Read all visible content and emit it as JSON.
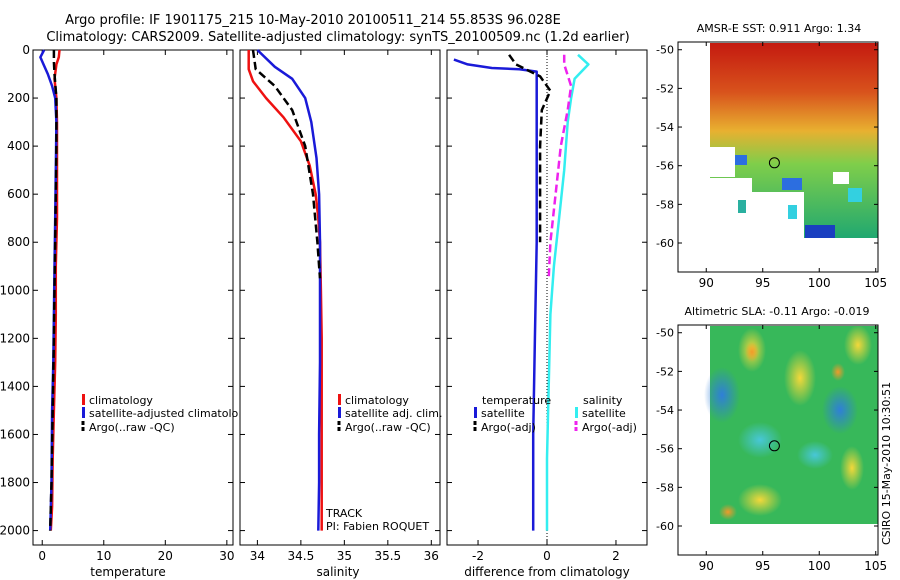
{
  "title": {
    "line1": "Argo profile: IF 1901175_215 10-May-2010 20100511_214 55.853S 96.028E",
    "line2": "Climatology: CARS2009. Satellite-adjusted climatology: synTS_20100509.nc (1.2d earlier)"
  },
  "stamp": "CSIRO 15-May-2010 10:30:51",
  "colors": {
    "climatology": "#ee1111",
    "satellite": "#1a1ad8",
    "argo": "#000000",
    "satellite_diff": "#33eef0",
    "argo_adj_diff": "#ee22ee"
  },
  "chart_data": [
    {
      "id": "temperature",
      "type": "line",
      "xlabel": "temperature",
      "ylabel": "",
      "xlim": [
        -1.5,
        31
      ],
      "ylim": [
        2060,
        0
      ],
      "xticks": [
        0,
        10,
        20,
        30
      ],
      "yticks": [
        0,
        200,
        400,
        600,
        800,
        1000,
        1200,
        1400,
        1600,
        1800,
        2000
      ],
      "series": [
        {
          "name": "climatology",
          "style": "solid",
          "color": "#ee1111",
          "x": [
            2.8,
            2.7,
            2.3,
            2.0,
            2.3,
            2.4,
            2.4,
            2.4,
            2.2,
            2.2,
            2.1,
            1.9,
            1.7,
            1.6,
            1.4
          ],
          "y": [
            0,
            30,
            60,
            120,
            200,
            300,
            500,
            700,
            900,
            1100,
            1300,
            1500,
            1700,
            1900,
            2000
          ]
        },
        {
          "name": "satellite-adjusted climatology",
          "style": "solid",
          "color": "#1a1ad8",
          "x": [
            0.3,
            -0.3,
            0.2,
            0.9,
            1.6,
            2.1,
            2.3,
            2.2,
            2.1,
            2.0,
            1.9,
            1.8,
            1.6,
            1.5,
            1.3
          ],
          "y": [
            0,
            30,
            60,
            100,
            150,
            200,
            300,
            500,
            700,
            900,
            1100,
            1300,
            1500,
            1800,
            2000
          ]
        },
        {
          "name": "Argo(..raw -QC)",
          "style": "dashed",
          "color": "#000000",
          "x": [
            1.9,
            1.9,
            2.0,
            2.3,
            2.3,
            2.2,
            2.1,
            2.0,
            1.9,
            1.7,
            1.5,
            1.3
          ],
          "y": [
            0,
            50,
            100,
            200,
            400,
            600,
            800,
            1000,
            1200,
            1500,
            1800,
            2000
          ]
        }
      ],
      "legend": {
        "position": "middle-right",
        "entries": [
          "climatology",
          "satellite-adjusted climatolo",
          "Argo(..raw -QC)"
        ]
      }
    },
    {
      "id": "salinity",
      "type": "line",
      "xlabel": "salinity",
      "ylabel": "",
      "xlim": [
        33.8,
        36.1
      ],
      "ylim": [
        2060,
        0
      ],
      "xticks": [
        34,
        34.5,
        35,
        35.5,
        36
      ],
      "series": [
        {
          "name": "climatology",
          "style": "solid",
          "color": "#ee1111",
          "x": [
            33.9,
            33.9,
            33.95,
            34.1,
            34.3,
            34.5,
            34.6,
            34.67,
            34.7,
            34.72,
            34.73,
            34.74,
            34.74,
            34.74,
            34.74
          ],
          "y": [
            0,
            80,
            130,
            200,
            280,
            380,
            480,
            600,
            700,
            800,
            1000,
            1200,
            1500,
            1800,
            2000
          ]
        },
        {
          "name": "satellite adj. clim.",
          "style": "solid",
          "color": "#1a1ad8",
          "x": [
            34.0,
            34.2,
            34.4,
            34.55,
            34.62,
            34.68,
            34.71,
            34.72,
            34.72,
            34.72,
            34.71,
            34.71,
            34.7
          ],
          "y": [
            0,
            70,
            120,
            200,
            300,
            450,
            600,
            800,
            1000,
            1300,
            1600,
            1800,
            2000
          ]
        },
        {
          "name": "Argo(..raw -QC)",
          "style": "dashed",
          "color": "#000000",
          "x": [
            33.95,
            33.98,
            34.2,
            34.4,
            34.55,
            34.64,
            34.69,
            34.71,
            34.72
          ],
          "y": [
            0,
            80,
            150,
            250,
            400,
            600,
            800,
            900,
            950
          ]
        }
      ],
      "legend": {
        "position": "middle-right",
        "entries": [
          "climatology",
          "satellite adj. clim.",
          "Argo(..raw -QC)"
        ]
      },
      "annotations": [
        "TRACK",
        "PI: Fabien ROQUET"
      ]
    },
    {
      "id": "difference",
      "type": "line",
      "xlabel": "difference from climatology",
      "ylabel": "",
      "xlim": [
        -2.9,
        2.9
      ],
      "ylim": [
        2060,
        0
      ],
      "xticks": [
        -2,
        0,
        2
      ],
      "legend": {
        "temperature_header": "temperature",
        "salinity_header": "salinity",
        "temperature_entries": [
          "satellite",
          "Argo(-adj)"
        ],
        "salinity_entries": [
          "satellite",
          "Argo(-adj)"
        ]
      },
      "series": [
        {
          "name": "temperature satellite",
          "style": "solid",
          "color": "#1a1ad8",
          "x": [
            -2.7,
            -2.3,
            -1.6,
            -0.8,
            -0.3,
            -0.3,
            -0.3,
            -0.3,
            -0.3,
            -0.35,
            -0.4,
            -0.4
          ],
          "y": [
            40,
            60,
            75,
            80,
            90,
            150,
            200,
            400,
            800,
            1200,
            1600,
            2000
          ]
        },
        {
          "name": "temperature Argo(-adj)",
          "style": "dashed",
          "color": "#000000",
          "x": [
            -1.1,
            -0.9,
            -0.2,
            0.1,
            -0.15,
            -0.2,
            -0.2,
            -0.2
          ],
          "y": [
            20,
            60,
            110,
            170,
            250,
            400,
            600,
            800
          ]
        },
        {
          "name": "salinity satellite",
          "style": "solid",
          "color": "#33eef0",
          "x": [
            0.9,
            1.2,
            0.8,
            0.7,
            0.6,
            0.5,
            0.35,
            0.2,
            0.1,
            0.05,
            0.0,
            0.0
          ],
          "y": [
            20,
            60,
            120,
            200,
            300,
            500,
            700,
            900,
            1100,
            1400,
            1700,
            2000
          ]
        },
        {
          "name": "salinity Argo(-adj)",
          "style": "dashed",
          "color": "#ee22ee",
          "x": [
            0.5,
            0.5,
            0.7,
            0.6,
            0.4,
            0.25,
            0.1,
            0.05
          ],
          "y": [
            20,
            60,
            150,
            250,
            400,
            600,
            800,
            950
          ]
        }
      ],
      "zero_line": true
    }
  ],
  "maps": [
    {
      "id": "sst-map",
      "title": "AMSR-E SST: 0.911 Argo: 1.34",
      "xticks": [
        90,
        95,
        100,
        105
      ],
      "yticks": [
        -50,
        -52,
        -54,
        -56,
        -58,
        -60
      ],
      "xlim": [
        87.5,
        105.2
      ],
      "ylim": [
        -61.5,
        -49.6
      ],
      "profile_location": [
        96.03,
        -55.85
      ]
    },
    {
      "id": "sla-map",
      "title": "Altimetric SLA: -0.11  Argo: -0.019",
      "xticks": [
        90,
        95,
        100,
        105
      ],
      "yticks": [
        -50,
        -52,
        -54,
        -56,
        -58,
        -60
      ],
      "xlim": [
        87.5,
        105.2
      ],
      "ylim": [
        -61.5,
        -49.6
      ],
      "profile_location": [
        96.03,
        -55.85
      ]
    }
  ]
}
